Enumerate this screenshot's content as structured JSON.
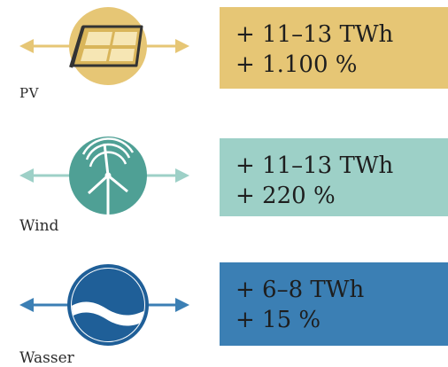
{
  "colors": {
    "pv": "#e6c675",
    "wind": "#9dd0c7",
    "water": "#3b7fb4",
    "pv_dark": "#d4a83a",
    "wind_dark": "#6ab5a7",
    "water_dark": "#1f5f98"
  },
  "rows": [
    {
      "id": "pv",
      "label": "PV",
      "icon": "solar-panel-icon",
      "energy": "+ 11–13 TWh",
      "percent": "+ 1.100 %"
    },
    {
      "id": "wind",
      "label": "Wind",
      "icon": "wind-turbine-icon",
      "energy": "+ 11–13 TWh",
      "percent": "+ 220 %"
    },
    {
      "id": "water",
      "label": "Wasser",
      "icon": "water-wave-icon",
      "energy": "+ 6–8 TWh",
      "percent": "+ 15 %"
    }
  ]
}
